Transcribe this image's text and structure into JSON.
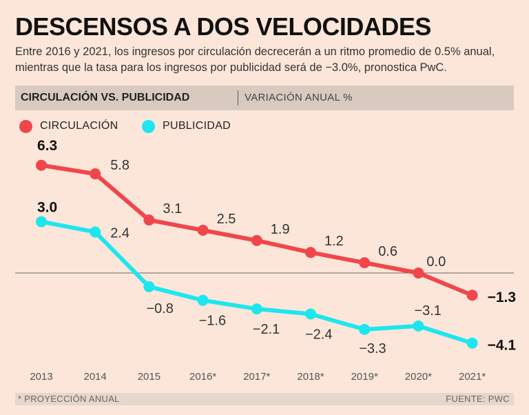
{
  "header": {
    "title": "DESCENSOS A DOS VELOCIDADES",
    "subtitle": "Entre 2016 y 2021, los ingresos por circulación decrecerán a un ritmo promedio de 0.5% anual, mientras que la tasa para los ingresos por publicidad será de −3.0%, pronostica PwC.",
    "bar_main": "CIRCULACIÓN VS. PUBLICIDAD",
    "bar_sub": "VARIACIÓN ANUAL %"
  },
  "legend": [
    {
      "label": "CIRCULACIÓN",
      "color": "#f0464b"
    },
    {
      "label": "PUBLICIDAD",
      "color": "#1ee6ef"
    }
  ],
  "chart_data": {
    "type": "line",
    "title": "CIRCULACIÓN VS. PUBLICIDAD",
    "ylabel": "VARIACIÓN ANUAL %",
    "categories": [
      "2013",
      "2014",
      "2015",
      "2016*",
      "2017*",
      "2018*",
      "2019*",
      "2020*",
      "2021*"
    ],
    "series": [
      {
        "name": "CIRCULACIÓN",
        "color": "#f0464b",
        "values": [
          6.3,
          5.8,
          3.1,
          2.5,
          1.9,
          1.2,
          0.6,
          0.0,
          -1.3
        ],
        "labels": [
          "6.3",
          "5.8",
          "3.1",
          "2.5",
          "1.9",
          "1.2",
          "0.6",
          "0.0",
          "−1.3"
        ]
      },
      {
        "name": "PUBLICIDAD",
        "color": "#1ee6ef",
        "values": [
          3.0,
          2.4,
          -0.8,
          -1.6,
          -2.1,
          -2.4,
          -3.3,
          -3.1,
          -4.1
        ],
        "labels": [
          "3.0",
          "2.4",
          "−0.8",
          "−1.6",
          "−2.1",
          "−2.4",
          "−3.3",
          "−3.1",
          "−4.1"
        ]
      }
    ],
    "ylim": [
      -4.5,
      7
    ]
  },
  "footer": {
    "note": "* PROYECCIÓN ANUAL",
    "source": "FUENTE: PWC"
  }
}
